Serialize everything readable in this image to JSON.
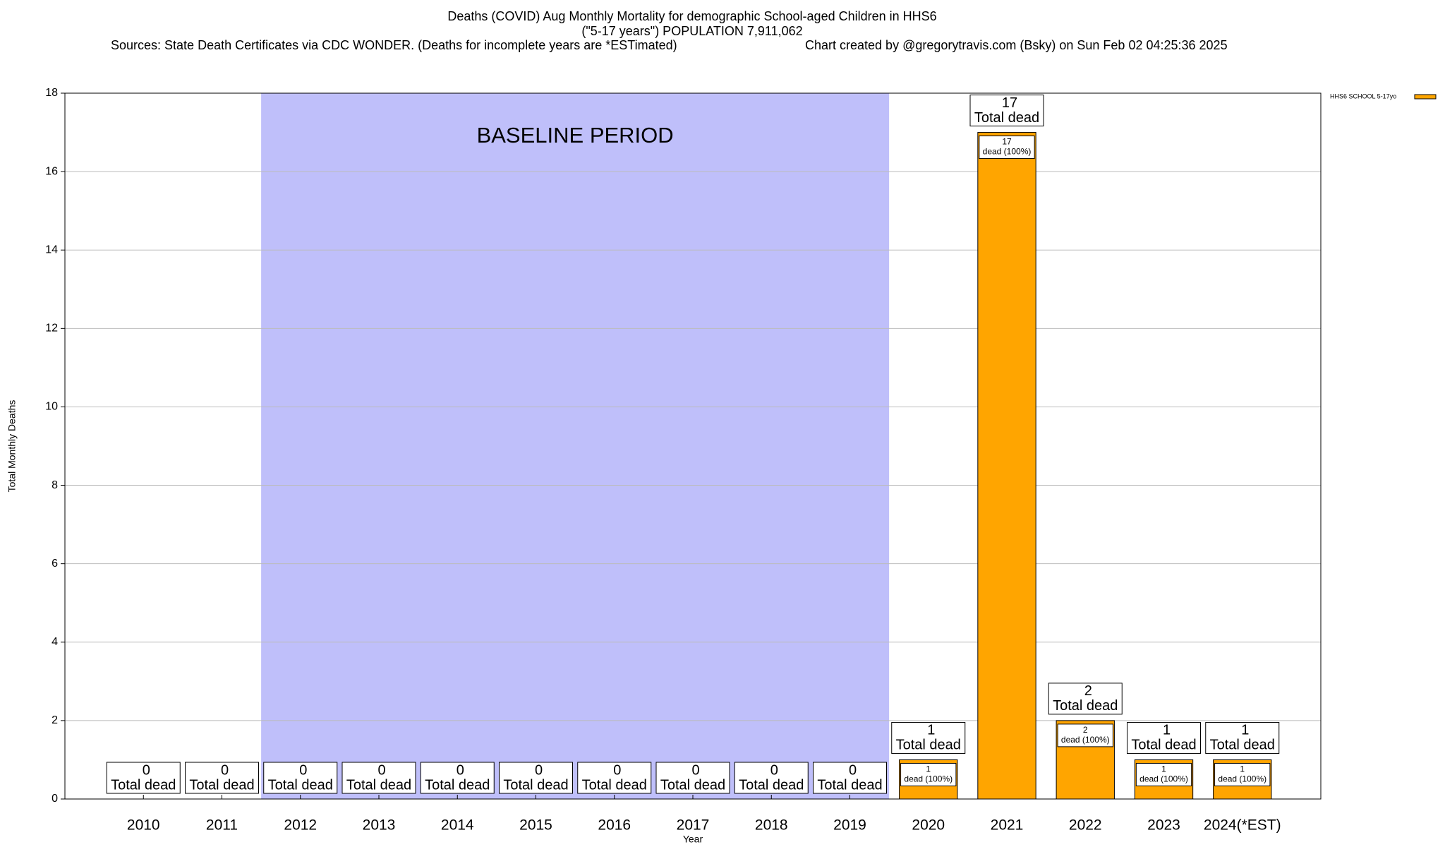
{
  "chart_data": {
    "type": "bar",
    "title": "Deaths (COVID) Aug Monthly Mortality for demographic School-aged Children in HHS6",
    "subtitle": "(\"5-17 years\") POPULATION 7,911,062",
    "source": "Sources: State Death Certificates via CDC WONDER. (Deaths for incomplete years are *ESTimated)",
    "credit": "Chart created by @gregorytravis.com (Bsky) on Sun Feb 02 04:25:36 2025",
    "x_label": "Year",
    "y_label": "Total Monthly Deaths",
    "categories": [
      "2010",
      "2011",
      "2012",
      "2013",
      "2014",
      "2015",
      "2016",
      "2017",
      "2018",
      "2019",
      "2020",
      "2021",
      "2022",
      "2023",
      "2024(*EST)"
    ],
    "series": [
      {
        "name": "HHS6 SCHOOL 5-17yo",
        "color": "#ffa500",
        "values": [
          0,
          0,
          0,
          0,
          0,
          0,
          0,
          0,
          0,
          0,
          1,
          17,
          2,
          1,
          1
        ]
      }
    ],
    "total_label": "Total dead",
    "segment_label": "dead (100%)",
    "baseline": {
      "label": "BASELINE PERIOD",
      "from": "2012",
      "to": "2019",
      "color": "#bfbffa"
    },
    "ylim": [
      0,
      18
    ],
    "yticks": [
      0,
      2,
      4,
      6,
      8,
      10,
      12,
      14,
      16,
      18
    ],
    "grid": true,
    "legend": "top-right"
  }
}
